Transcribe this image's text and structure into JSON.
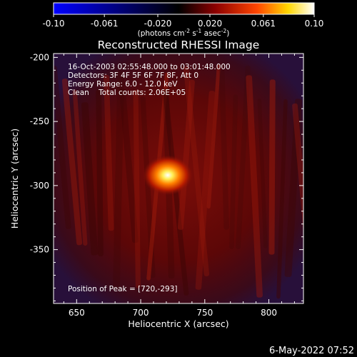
{
  "chart_data": {
    "type": "heatmap",
    "title": "Reconstructed RHESSI Image",
    "xlabel": "Heliocentric X (arcsec)",
    "ylabel": "Heliocentric Y (arcsec)",
    "xlim": [
      632,
      827
    ],
    "ylim": [
      -392,
      -197
    ],
    "x_ticks": [
      650,
      700,
      750,
      800
    ],
    "y_ticks": [
      -200,
      -250,
      -300,
      -350
    ],
    "annotations": [
      "16-Oct-2003 02:55:48.000 to 03:01:48.000",
      "Detectors: 3F 4F 5F 6F 7F 8F, Att 0",
      "Energy Range: 6.0 - 12.0 keV",
      "Clean    Total counts: 2.06E+05"
    ],
    "peak_label": "Position of Peak = [720,-293]",
    "peak": {
      "x": 720,
      "y": -293
    },
    "source_sigma_arcsec": 6,
    "colorbar": {
      "min": -0.1,
      "max": 0.1,
      "tick_labels": [
        "-0.10",
        "-0.061",
        "-0.020",
        "0.020",
        "0.061",
        "0.10"
      ],
      "unit_parts": {
        "a": "(photons cm",
        "a_exp": "-2",
        "b": " s",
        "b_exp": "-1",
        "c": " asec",
        "c_exp": "-2",
        "d": ")"
      },
      "colormap": [
        "#0000ff",
        "#000000",
        "#8b0000",
        "#ff4500",
        "#ffd700",
        "#ffffff"
      ]
    },
    "background_level": 0.15,
    "date_stamp": "6-May-2022 07:52"
  }
}
